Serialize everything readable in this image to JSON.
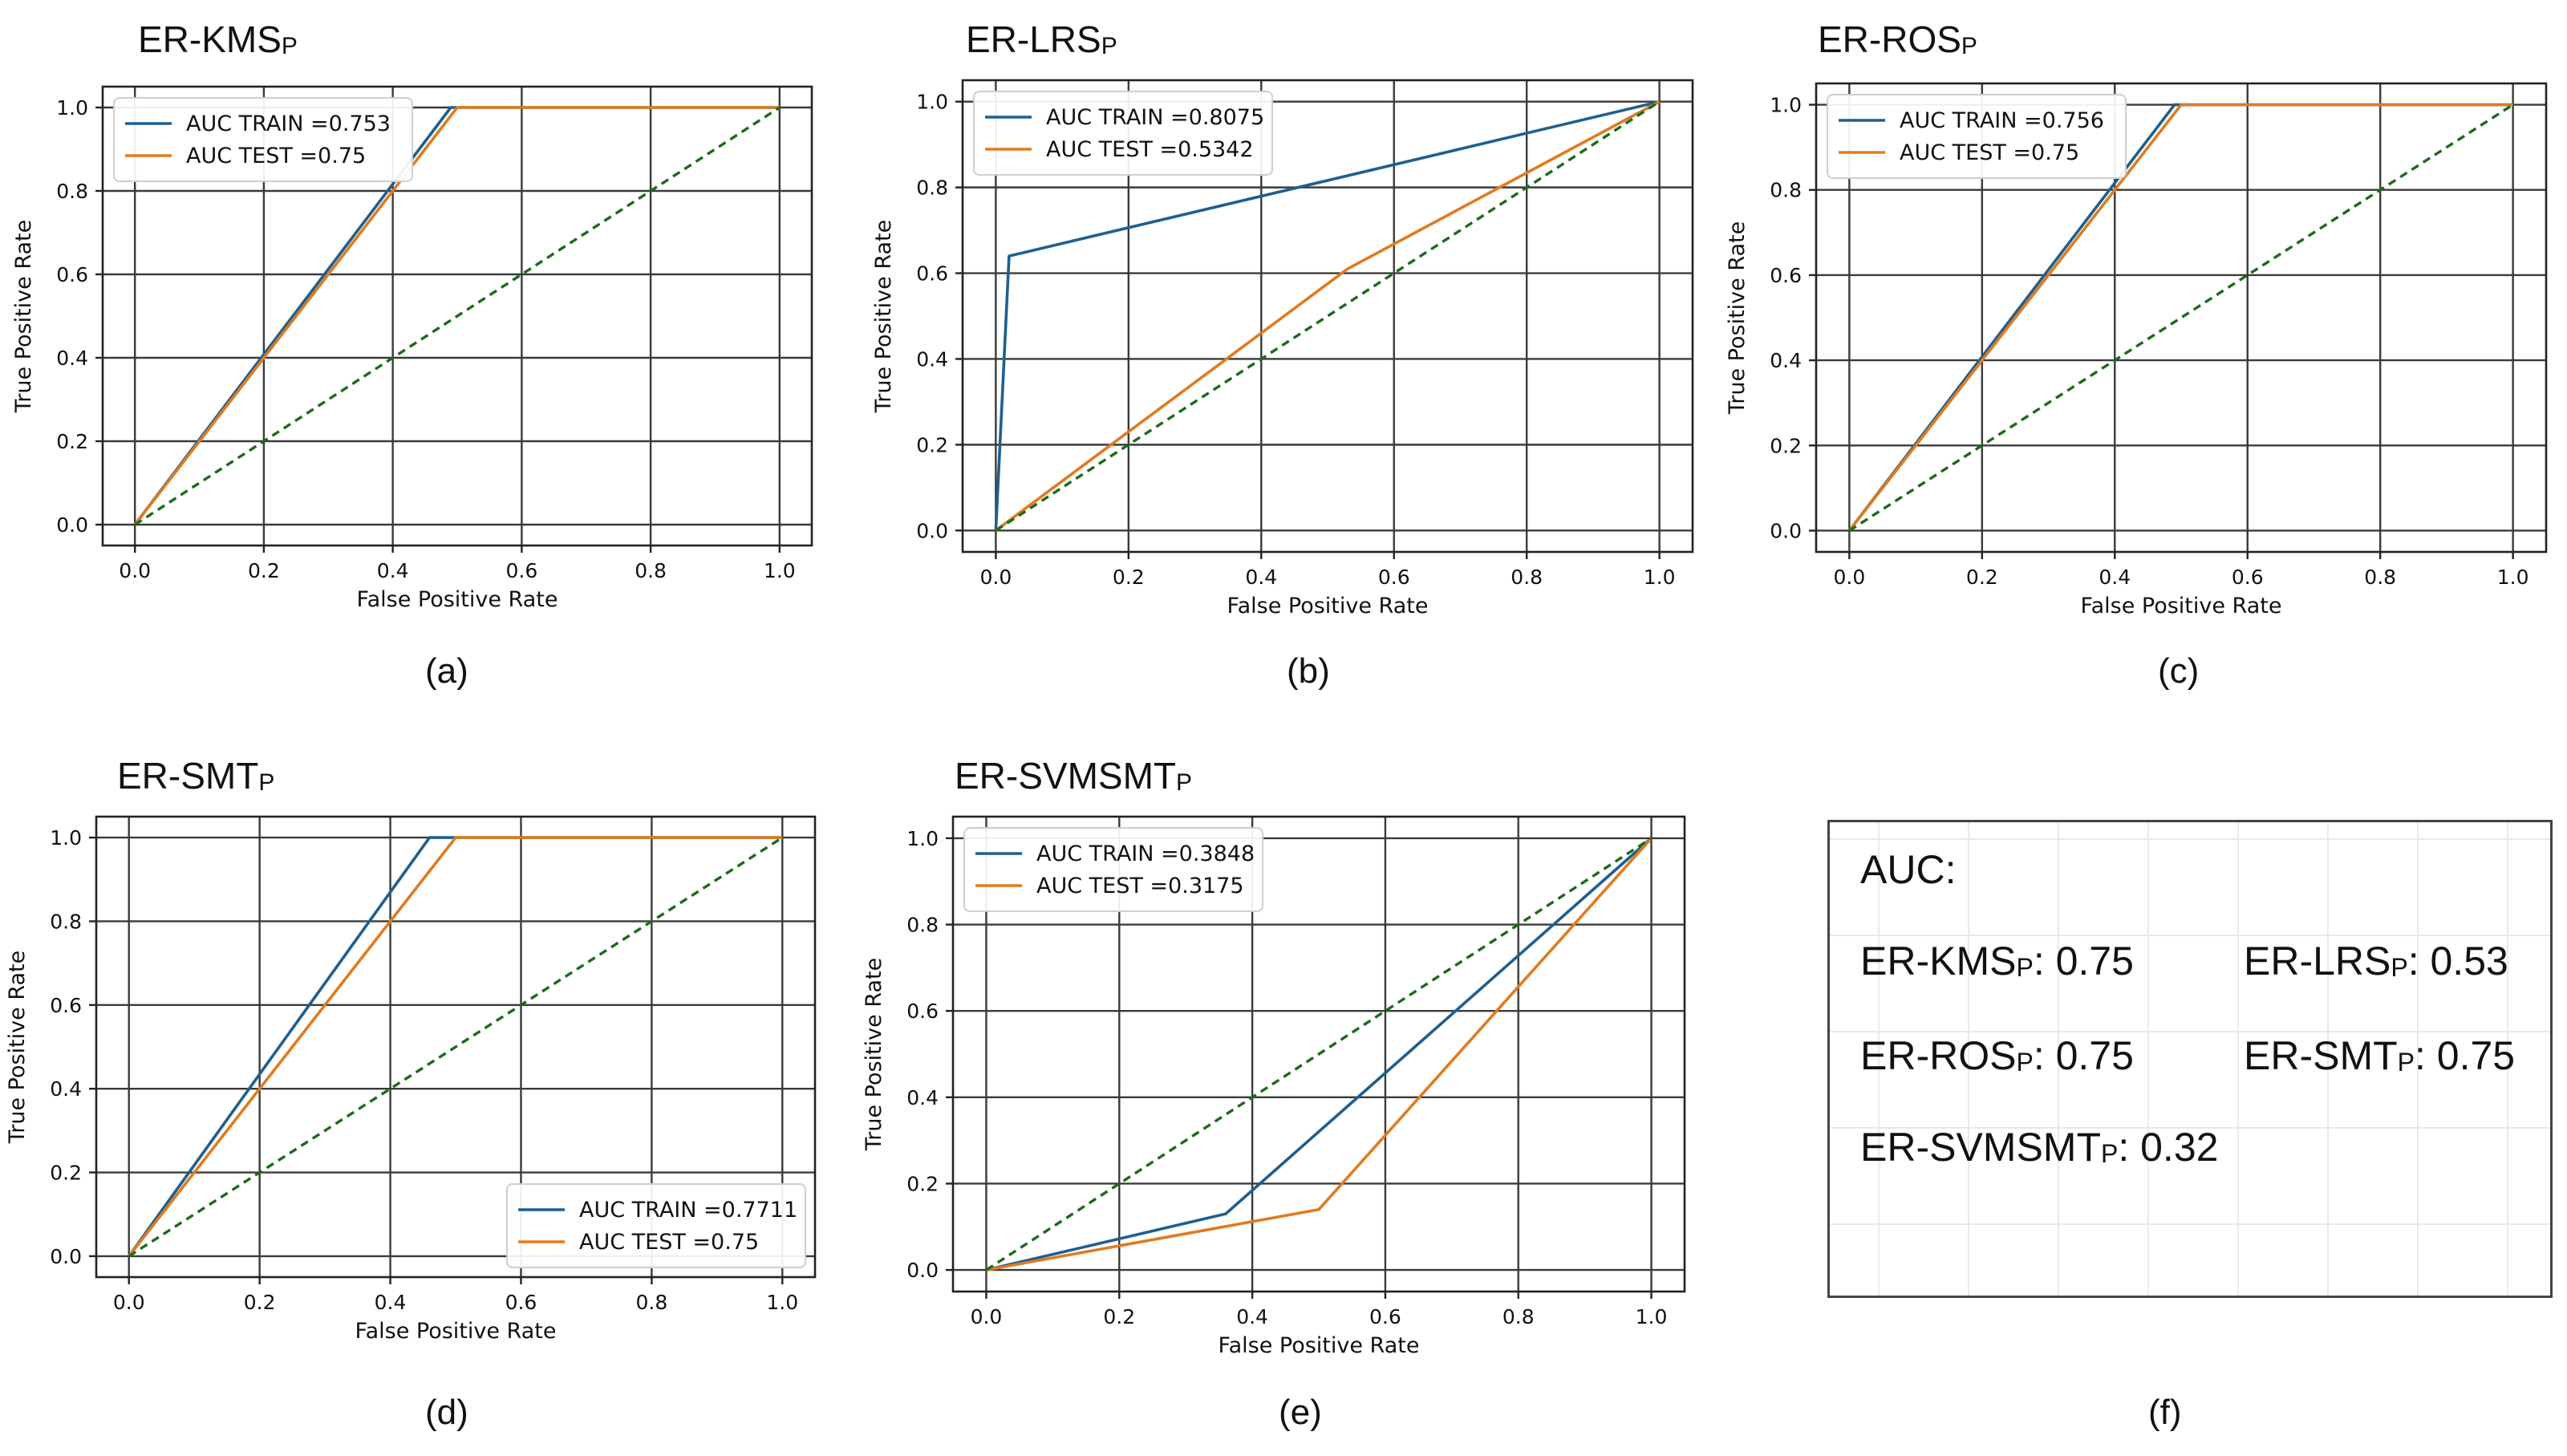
{
  "chart_data": [
    {
      "id": "a",
      "type": "line",
      "title": "ER-KMS",
      "title_sub": "P",
      "panel_label": "(a)",
      "xlabel": "False Positive Rate",
      "ylabel": "True Positive Rate",
      "xlim": [
        -0.05,
        1.05
      ],
      "ylim": [
        -0.05,
        1.05
      ],
      "xticks": [
        "0.0",
        "0.2",
        "0.4",
        "0.6",
        "0.8",
        "1.0"
      ],
      "yticks": [
        "0.0",
        "0.2",
        "0.4",
        "0.6",
        "0.8",
        "1.0"
      ],
      "grid": true,
      "legend_position": "upper-left",
      "series": [
        {
          "name": "AUC TRAIN =0.753",
          "color": "#1f5f8f",
          "dash": false,
          "x": [
            0,
            0.49,
            1
          ],
          "y": [
            0,
            1,
            1
          ]
        },
        {
          "name": "AUC TEST =0.75",
          "color": "#e07b1f",
          "dash": false,
          "x": [
            0,
            0.5,
            1
          ],
          "y": [
            0,
            1,
            1
          ]
        },
        {
          "name": "",
          "color": "#1a6b1a",
          "dash": true,
          "x": [
            0,
            1
          ],
          "y": [
            0,
            1
          ]
        }
      ]
    },
    {
      "id": "b",
      "type": "line",
      "title": "ER-LRS",
      "title_sub": "P",
      "panel_label": "(b)",
      "xlabel": "False Positive Rate",
      "ylabel": "True Positive Rate",
      "xlim": [
        -0.05,
        1.05
      ],
      "ylim": [
        -0.05,
        1.05
      ],
      "xticks": [
        "0.0",
        "0.2",
        "0.4",
        "0.6",
        "0.8",
        "1.0"
      ],
      "yticks": [
        "0.0",
        "0.2",
        "0.4",
        "0.6",
        "0.8",
        "1.0"
      ],
      "grid": true,
      "legend_position": "upper-left",
      "series": [
        {
          "name": "AUC TRAIN =0.8075",
          "color": "#1f5f8f",
          "dash": false,
          "x": [
            0,
            0.02,
            1
          ],
          "y": [
            0,
            0.64,
            1
          ]
        },
        {
          "name": "AUC TEST =0.5342",
          "color": "#e07b1f",
          "dash": false,
          "x": [
            0,
            0.53,
            1
          ],
          "y": [
            0,
            0.61,
            1
          ]
        },
        {
          "name": "",
          "color": "#1a6b1a",
          "dash": true,
          "x": [
            0,
            1
          ],
          "y": [
            0,
            1
          ]
        }
      ]
    },
    {
      "id": "c",
      "type": "line",
      "title": "ER-ROS",
      "title_sub": "P",
      "panel_label": "(c)",
      "xlabel": "False Positive Rate",
      "ylabel": "True Positive Rate",
      "xlim": [
        -0.05,
        1.05
      ],
      "ylim": [
        -0.05,
        1.05
      ],
      "xticks": [
        "0.0",
        "0.2",
        "0.4",
        "0.6",
        "0.8",
        "1.0"
      ],
      "yticks": [
        "0.0",
        "0.2",
        "0.4",
        "0.6",
        "0.8",
        "1.0"
      ],
      "grid": true,
      "legend_position": "upper-left",
      "series": [
        {
          "name": "AUC TRAIN =0.756",
          "color": "#1f5f8f",
          "dash": false,
          "x": [
            0,
            0.49,
            1
          ],
          "y": [
            0,
            1,
            1
          ]
        },
        {
          "name": "AUC TEST =0.75",
          "color": "#e07b1f",
          "dash": false,
          "x": [
            0,
            0.5,
            1
          ],
          "y": [
            0,
            1,
            1
          ]
        },
        {
          "name": "",
          "color": "#1a6b1a",
          "dash": true,
          "x": [
            0,
            1
          ],
          "y": [
            0,
            1
          ]
        }
      ]
    },
    {
      "id": "d",
      "type": "line",
      "title": "ER-SMT",
      "title_sub": "P",
      "panel_label": "(d)",
      "xlabel": "False Positive Rate",
      "ylabel": "True Positive Rate",
      "xlim": [
        -0.05,
        1.05
      ],
      "ylim": [
        -0.05,
        1.05
      ],
      "xticks": [
        "0.0",
        "0.2",
        "0.4",
        "0.6",
        "0.8",
        "1.0"
      ],
      "yticks": [
        "0.0",
        "0.2",
        "0.4",
        "0.6",
        "0.8",
        "1.0"
      ],
      "grid": true,
      "legend_position": "lower-right",
      "series": [
        {
          "name": "AUC TRAIN =0.7711",
          "color": "#1f5f8f",
          "dash": false,
          "x": [
            0,
            0.46,
            1
          ],
          "y": [
            0,
            1,
            1
          ]
        },
        {
          "name": "AUC TEST =0.75",
          "color": "#e07b1f",
          "dash": false,
          "x": [
            0,
            0.5,
            1
          ],
          "y": [
            0,
            1,
            1
          ]
        },
        {
          "name": "",
          "color": "#1a6b1a",
          "dash": true,
          "x": [
            0,
            1
          ],
          "y": [
            0,
            1
          ]
        }
      ]
    },
    {
      "id": "e",
      "type": "line",
      "title": "ER-SVMSMT",
      "title_sub": "P",
      "panel_label": "(e)",
      "xlabel": "False Positive Rate",
      "ylabel": "True Positive Rate",
      "xlim": [
        -0.05,
        1.05
      ],
      "ylim": [
        -0.05,
        1.05
      ],
      "xticks": [
        "0.0",
        "0.2",
        "0.4",
        "0.6",
        "0.8",
        "1.0"
      ],
      "yticks": [
        "0.0",
        "0.2",
        "0.4",
        "0.6",
        "0.8",
        "1.0"
      ],
      "grid": true,
      "legend_position": "upper-left",
      "series": [
        {
          "name": "AUC TRAIN =0.3848",
          "color": "#1f5f8f",
          "dash": false,
          "x": [
            0,
            0.36,
            1
          ],
          "y": [
            0,
            0.13,
            1
          ]
        },
        {
          "name": "AUC TEST =0.3175",
          "color": "#e07b1f",
          "dash": false,
          "x": [
            0,
            0.5,
            1
          ],
          "y": [
            0,
            0.14,
            1
          ]
        },
        {
          "name": "",
          "color": "#1a6b1a",
          "dash": true,
          "x": [
            0,
            1
          ],
          "y": [
            0,
            1
          ]
        }
      ]
    }
  ],
  "summary": {
    "panel_label": "(f)",
    "heading": "AUC:",
    "entries": [
      {
        "name": "ER-KMS",
        "sub": "P",
        "value": ": 0.75"
      },
      {
        "name": "ER-LRS",
        "sub": "P",
        "value": ": 0.53"
      },
      {
        "name": "ER-ROS",
        "sub": "P",
        "value": ": 0.75"
      },
      {
        "name": "ER-SMT",
        "sub": "P",
        "value": ": 0.75"
      },
      {
        "name": "ER-SVMSMT",
        "sub": "P",
        "value": ": 0.32"
      }
    ]
  }
}
